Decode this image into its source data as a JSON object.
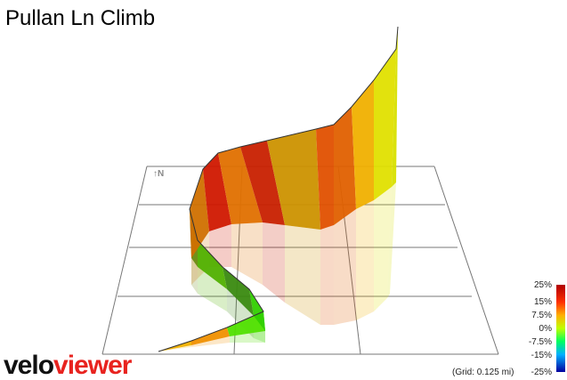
{
  "header": {
    "title": "Pullan Ln Climb"
  },
  "map": {
    "north_label": "↑N",
    "grid_note": "(Grid: 0.125 mi)"
  },
  "legend": {
    "labels": [
      "25%",
      "15%",
      "7.5%",
      "0%",
      "-7.5%",
      "-15%",
      "-25%"
    ]
  },
  "logo": {
    "parts": [
      "velo",
      "viewer"
    ]
  }
}
